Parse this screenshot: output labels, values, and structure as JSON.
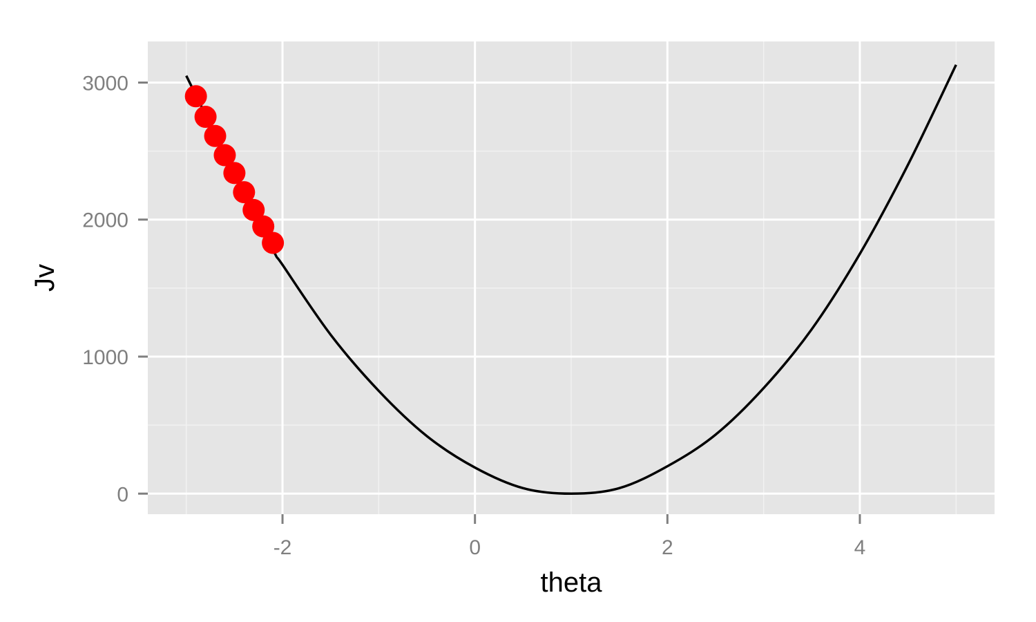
{
  "chart_data": {
    "type": "line",
    "xlabel": "theta",
    "ylabel": "Jv",
    "xlim": [
      -3.4,
      5.4
    ],
    "ylim": [
      -150,
      3300
    ],
    "x_ticks": [
      -2,
      0,
      2,
      4
    ],
    "x_tick_labels": [
      "-2",
      "0",
      "2",
      "4"
    ],
    "y_ticks": [
      0,
      1000,
      2000,
      3000
    ],
    "y_tick_labels": [
      "0",
      "1000",
      "2000",
      "3000"
    ],
    "grid": true,
    "panel_color": "#e5e5e5",
    "grid_color": "#ffffff",
    "series": [
      {
        "kind": "line",
        "color": "#000000",
        "x": [
          -3.0,
          -2.5,
          -2.1,
          -2.0,
          -1.5,
          -1.0,
          -0.5,
          0.0,
          0.5,
          1.0,
          1.5,
          2.0,
          2.5,
          3.0,
          3.5,
          4.0,
          4.5,
          5.0
        ],
        "y": [
          3050,
          2340,
          1780,
          1670,
          1160,
          750,
          420,
          190,
          40,
          0,
          40,
          200,
          430,
          770,
          1200,
          1750,
          2400,
          3130
        ]
      },
      {
        "kind": "points",
        "color": "#ff0000",
        "x": [
          -2.9,
          -2.8,
          -2.7,
          -2.6,
          -2.5,
          -2.4,
          -2.3,
          -2.2,
          -2.1
        ],
        "y": [
          2900,
          2750,
          2610,
          2470,
          2340,
          2200,
          2070,
          1950,
          1830
        ]
      }
    ]
  }
}
